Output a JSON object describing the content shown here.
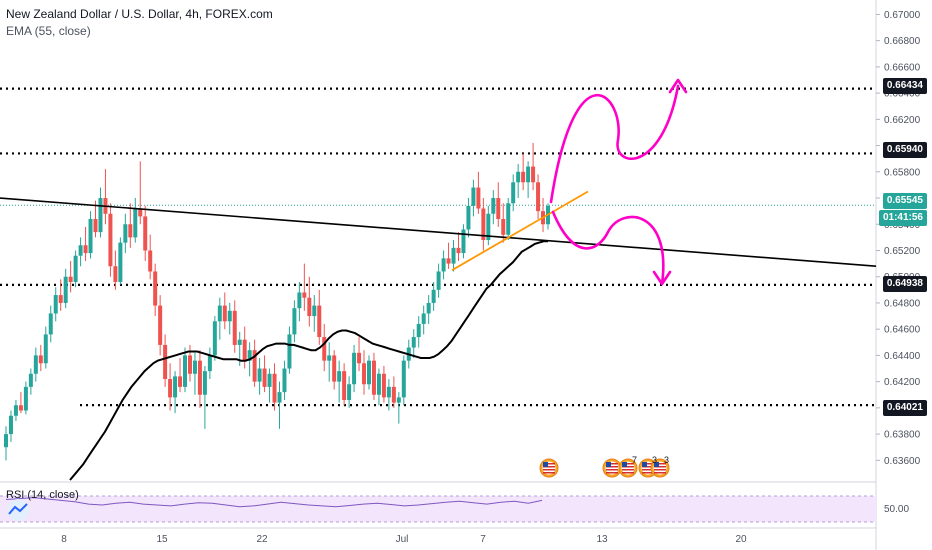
{
  "header": {
    "title": "New Zealand Dollar / U.S. Dollar, 4h, FOREX.com",
    "indicator": "EMA (55, close)"
  },
  "rsi": {
    "label": "RSI (14, close)",
    "value": "50.00"
  },
  "price_axis": {
    "ticks": [
      "0.67000",
      "0.66800",
      "0.66600",
      "0.66400",
      "0.66200",
      "0.66000",
      "0.65800",
      "0.65600",
      "0.65400",
      "0.65200",
      "0.65000",
      "0.64800",
      "0.64600",
      "0.64400",
      "0.64200",
      "0.64000",
      "0.63800",
      "0.63600"
    ]
  },
  "price_tags": {
    "level_1": "0.66434",
    "level_2": "0.65940",
    "current_price": "0.65545",
    "countdown": "01:41:56",
    "level_3": "0.64938",
    "level_4": "0.64021"
  },
  "time_axis": {
    "ticks": [
      "8",
      "15",
      "22",
      "Jul",
      "7",
      "13",
      "20"
    ]
  },
  "events": {
    "badges": [
      "7",
      "3",
      "3"
    ]
  },
  "colors": {
    "bull": "#26a69a",
    "bear": "#ef5350",
    "ema": "#000000",
    "trendline": "#000000",
    "support": "#ff9800",
    "forecast": "#ff00c8",
    "current_price_line": "#26a69a",
    "rsi_line": "#7e57c2",
    "rsi_band": "#f3e5fb"
  },
  "chart_data": {
    "type": "candlestick",
    "ylim": [
      0.6345,
      0.6711
    ],
    "levels": [
      0.66434,
      0.6594,
      0.64938,
      0.64021
    ],
    "current_price": 0.65545,
    "candles": [
      [
        0.637,
        0.6386,
        0.636,
        0.638
      ],
      [
        0.638,
        0.6398,
        0.6374,
        0.6394
      ],
      [
        0.6394,
        0.6406,
        0.639,
        0.6402
      ],
      [
        0.6402,
        0.6412,
        0.6396,
        0.6398
      ],
      [
        0.6398,
        0.642,
        0.6395,
        0.6416
      ],
      [
        0.6416,
        0.643,
        0.641,
        0.6426
      ],
      [
        0.6426,
        0.6446,
        0.642,
        0.644
      ],
      [
        0.644,
        0.6448,
        0.6428,
        0.6434
      ],
      [
        0.6434,
        0.6462,
        0.643,
        0.6456
      ],
      [
        0.6456,
        0.6478,
        0.645,
        0.6472
      ],
      [
        0.6472,
        0.6492,
        0.6466,
        0.6486
      ],
      [
        0.6486,
        0.6498,
        0.6474,
        0.648
      ],
      [
        0.648,
        0.6506,
        0.6476,
        0.65
      ],
      [
        0.65,
        0.6512,
        0.6488,
        0.6496
      ],
      [
        0.6496,
        0.652,
        0.6492,
        0.6516
      ],
      [
        0.6516,
        0.653,
        0.6508,
        0.6524
      ],
      [
        0.6524,
        0.6538,
        0.6512,
        0.6518
      ],
      [
        0.6518,
        0.655,
        0.6514,
        0.6544
      ],
      [
        0.6544,
        0.6558,
        0.653,
        0.6534
      ],
      [
        0.6534,
        0.6568,
        0.653,
        0.656
      ],
      [
        0.656,
        0.6582,
        0.654,
        0.6548
      ],
      [
        0.6548,
        0.6556,
        0.65,
        0.6508
      ],
      [
        0.6508,
        0.652,
        0.649,
        0.6496
      ],
      [
        0.6496,
        0.653,
        0.6494,
        0.6526
      ],
      [
        0.6526,
        0.6548,
        0.6518,
        0.654
      ],
      [
        0.654,
        0.6556,
        0.6522,
        0.653
      ],
      [
        0.653,
        0.656,
        0.6526,
        0.6552
      ],
      [
        0.6552,
        0.6588,
        0.654,
        0.6546
      ],
      [
        0.6546,
        0.6554,
        0.6512,
        0.652
      ],
      [
        0.652,
        0.6532,
        0.6498,
        0.6504
      ],
      [
        0.6504,
        0.651,
        0.647,
        0.6478
      ],
      [
        0.6478,
        0.6486,
        0.644,
        0.6448
      ],
      [
        0.6448,
        0.6456,
        0.6416,
        0.6422
      ],
      [
        0.6422,
        0.6434,
        0.6398,
        0.6408
      ],
      [
        0.6408,
        0.6428,
        0.6396,
        0.6424
      ],
      [
        0.6424,
        0.6438,
        0.6412,
        0.6416
      ],
      [
        0.6416,
        0.6446,
        0.6412,
        0.644
      ],
      [
        0.644,
        0.6448,
        0.642,
        0.6426
      ],
      [
        0.6426,
        0.6442,
        0.641,
        0.6436
      ],
      [
        0.6436,
        0.6444,
        0.64,
        0.641
      ],
      [
        0.641,
        0.6432,
        0.6384,
        0.6428
      ],
      [
        0.6428,
        0.6446,
        0.6422,
        0.644
      ],
      [
        0.644,
        0.647,
        0.6436,
        0.6466
      ],
      [
        0.6466,
        0.6484,
        0.6452,
        0.6478
      ],
      [
        0.6478,
        0.6488,
        0.646,
        0.6466
      ],
      [
        0.6466,
        0.648,
        0.6456,
        0.6474
      ],
      [
        0.6474,
        0.6482,
        0.6442,
        0.6448
      ],
      [
        0.6448,
        0.6458,
        0.6432,
        0.6452
      ],
      [
        0.6452,
        0.6462,
        0.643,
        0.6436
      ],
      [
        0.6436,
        0.645,
        0.6424,
        0.6444
      ],
      [
        0.6444,
        0.6452,
        0.6416,
        0.642
      ],
      [
        0.642,
        0.6438,
        0.641,
        0.643
      ],
      [
        0.643,
        0.644,
        0.6412,
        0.6416
      ],
      [
        0.6416,
        0.643,
        0.6404,
        0.6426
      ],
      [
        0.6426,
        0.6434,
        0.6398,
        0.6404
      ],
      [
        0.6404,
        0.642,
        0.6384,
        0.6412
      ],
      [
        0.6412,
        0.6436,
        0.6406,
        0.643
      ],
      [
        0.643,
        0.6462,
        0.6426,
        0.6456
      ],
      [
        0.6456,
        0.6482,
        0.645,
        0.6476
      ],
      [
        0.6476,
        0.6496,
        0.6466,
        0.6488
      ],
      [
        0.6488,
        0.651,
        0.6474,
        0.6484
      ],
      [
        0.6484,
        0.65,
        0.6462,
        0.647
      ],
      [
        0.647,
        0.6486,
        0.6458,
        0.6478
      ],
      [
        0.6478,
        0.649,
        0.6448,
        0.6454
      ],
      [
        0.6454,
        0.6464,
        0.6428,
        0.6436
      ],
      [
        0.6436,
        0.645,
        0.642,
        0.644
      ],
      [
        0.644,
        0.6444,
        0.6414,
        0.642
      ],
      [
        0.642,
        0.6436,
        0.6404,
        0.6428
      ],
      [
        0.6428,
        0.6434,
        0.6402,
        0.6406
      ],
      [
        0.6406,
        0.6424,
        0.64,
        0.6418
      ],
      [
        0.6418,
        0.6448,
        0.6412,
        0.6442
      ],
      [
        0.6442,
        0.6454,
        0.6428,
        0.6434
      ],
      [
        0.6434,
        0.6444,
        0.641,
        0.6418
      ],
      [
        0.6418,
        0.644,
        0.6414,
        0.6436
      ],
      [
        0.6436,
        0.6442,
        0.6406,
        0.641
      ],
      [
        0.641,
        0.643,
        0.6402,
        0.6426
      ],
      [
        0.6426,
        0.6432,
        0.6404,
        0.6408
      ],
      [
        0.6408,
        0.6422,
        0.6398,
        0.6416
      ],
      [
        0.6416,
        0.6424,
        0.64,
        0.6404
      ],
      [
        0.6404,
        0.6412,
        0.6388,
        0.6408
      ],
      [
        0.6408,
        0.644,
        0.6402,
        0.6436
      ],
      [
        0.6436,
        0.6452,
        0.643,
        0.6446
      ],
      [
        0.6446,
        0.646,
        0.6438,
        0.6454
      ],
      [
        0.6454,
        0.647,
        0.6446,
        0.6464
      ],
      [
        0.6464,
        0.6478,
        0.6456,
        0.6472
      ],
      [
        0.6472,
        0.6486,
        0.6464,
        0.648
      ],
      [
        0.648,
        0.6496,
        0.6474,
        0.649
      ],
      [
        0.649,
        0.651,
        0.6484,
        0.6504
      ],
      [
        0.6504,
        0.652,
        0.6498,
        0.6514
      ],
      [
        0.6514,
        0.6526,
        0.6506,
        0.651
      ],
      [
        0.651,
        0.6528,
        0.6504,
        0.6522
      ],
      [
        0.6522,
        0.6534,
        0.6512,
        0.6518
      ],
      [
        0.6518,
        0.654,
        0.6514,
        0.6536
      ],
      [
        0.6536,
        0.656,
        0.653,
        0.6554
      ],
      [
        0.6554,
        0.6574,
        0.6546,
        0.6568
      ],
      [
        0.6568,
        0.658,
        0.6548,
        0.6552
      ],
      [
        0.6552,
        0.656,
        0.652,
        0.6528
      ],
      [
        0.6528,
        0.6554,
        0.6524,
        0.6548
      ],
      [
        0.6548,
        0.6566,
        0.654,
        0.656
      ],
      [
        0.656,
        0.6572,
        0.6538,
        0.6544
      ],
      [
        0.6544,
        0.6556,
        0.6526,
        0.6532
      ],
      [
        0.6532,
        0.656,
        0.6528,
        0.6556
      ],
      [
        0.6556,
        0.6578,
        0.655,
        0.6572
      ],
      [
        0.6572,
        0.6586,
        0.656,
        0.658
      ],
      [
        0.658,
        0.6594,
        0.6566,
        0.6572
      ],
      [
        0.6572,
        0.6588,
        0.656,
        0.6584
      ],
      [
        0.6584,
        0.6602,
        0.6566,
        0.6572
      ],
      [
        0.6572,
        0.6578,
        0.6544,
        0.655
      ],
      [
        0.655,
        0.656,
        0.6534,
        0.654
      ],
      [
        0.654,
        0.6556,
        0.6536,
        0.6554
      ]
    ],
    "ema": [
      0.6345,
      0.6349,
      0.6353,
      0.6357,
      0.6362,
      0.6367,
      0.6372,
      0.6377,
      0.6382,
      0.6388,
      0.6394,
      0.64,
      0.6406,
      0.6411,
      0.6416,
      0.642,
      0.6424,
      0.6428,
      0.6431,
      0.6434,
      0.6436,
      0.6437,
      0.6438,
      0.6439,
      0.644,
      0.6441,
      0.6442,
      0.6443,
      0.6443,
      0.6443,
      0.6442,
      0.6441,
      0.644,
      0.6439,
      0.6438,
      0.6437,
      0.6437,
      0.6437,
      0.6437,
      0.6436,
      0.6436,
      0.6437,
      0.6439,
      0.6442,
      0.6445,
      0.6447,
      0.6448,
      0.6449,
      0.6449,
      0.6449,
      0.6448,
      0.6448,
      0.6447,
      0.6446,
      0.6445,
      0.6444,
      0.6444,
      0.6446,
      0.6449,
      0.6453,
      0.6456,
      0.6458,
      0.6459,
      0.6459,
      0.6458,
      0.6457,
      0.6455,
      0.6453,
      0.6451,
      0.6449,
      0.6448,
      0.6447,
      0.6446,
      0.6445,
      0.6444,
      0.6443,
      0.6442,
      0.6441,
      0.644,
      0.6439,
      0.6438,
      0.6438,
      0.6438,
      0.6439,
      0.6441,
      0.6444,
      0.6447,
      0.6451,
      0.6456,
      0.6461,
      0.6466,
      0.6471,
      0.6476,
      0.6481,
      0.6486,
      0.6491,
      0.6494,
      0.6498,
      0.6502,
      0.6505,
      0.6508,
      0.6511,
      0.6515,
      0.6519,
      0.6521,
      0.6523,
      0.6525,
      0.6526,
      0.6527,
      0.6527
    ],
    "trendline": [
      [
        0.656,
        0.6508
      ]
    ],
    "support_line": [
      0.6505,
      0.6565
    ],
    "rsi": [
      62,
      64,
      66,
      63,
      60,
      57,
      52,
      50,
      54,
      56,
      52,
      50,
      48,
      52,
      55,
      54,
      50,
      46,
      48,
      52,
      56,
      53,
      50,
      48,
      46,
      49,
      52,
      54,
      51,
      48,
      50,
      53,
      56,
      58,
      55,
      52,
      56,
      58,
      54,
      60
    ]
  }
}
